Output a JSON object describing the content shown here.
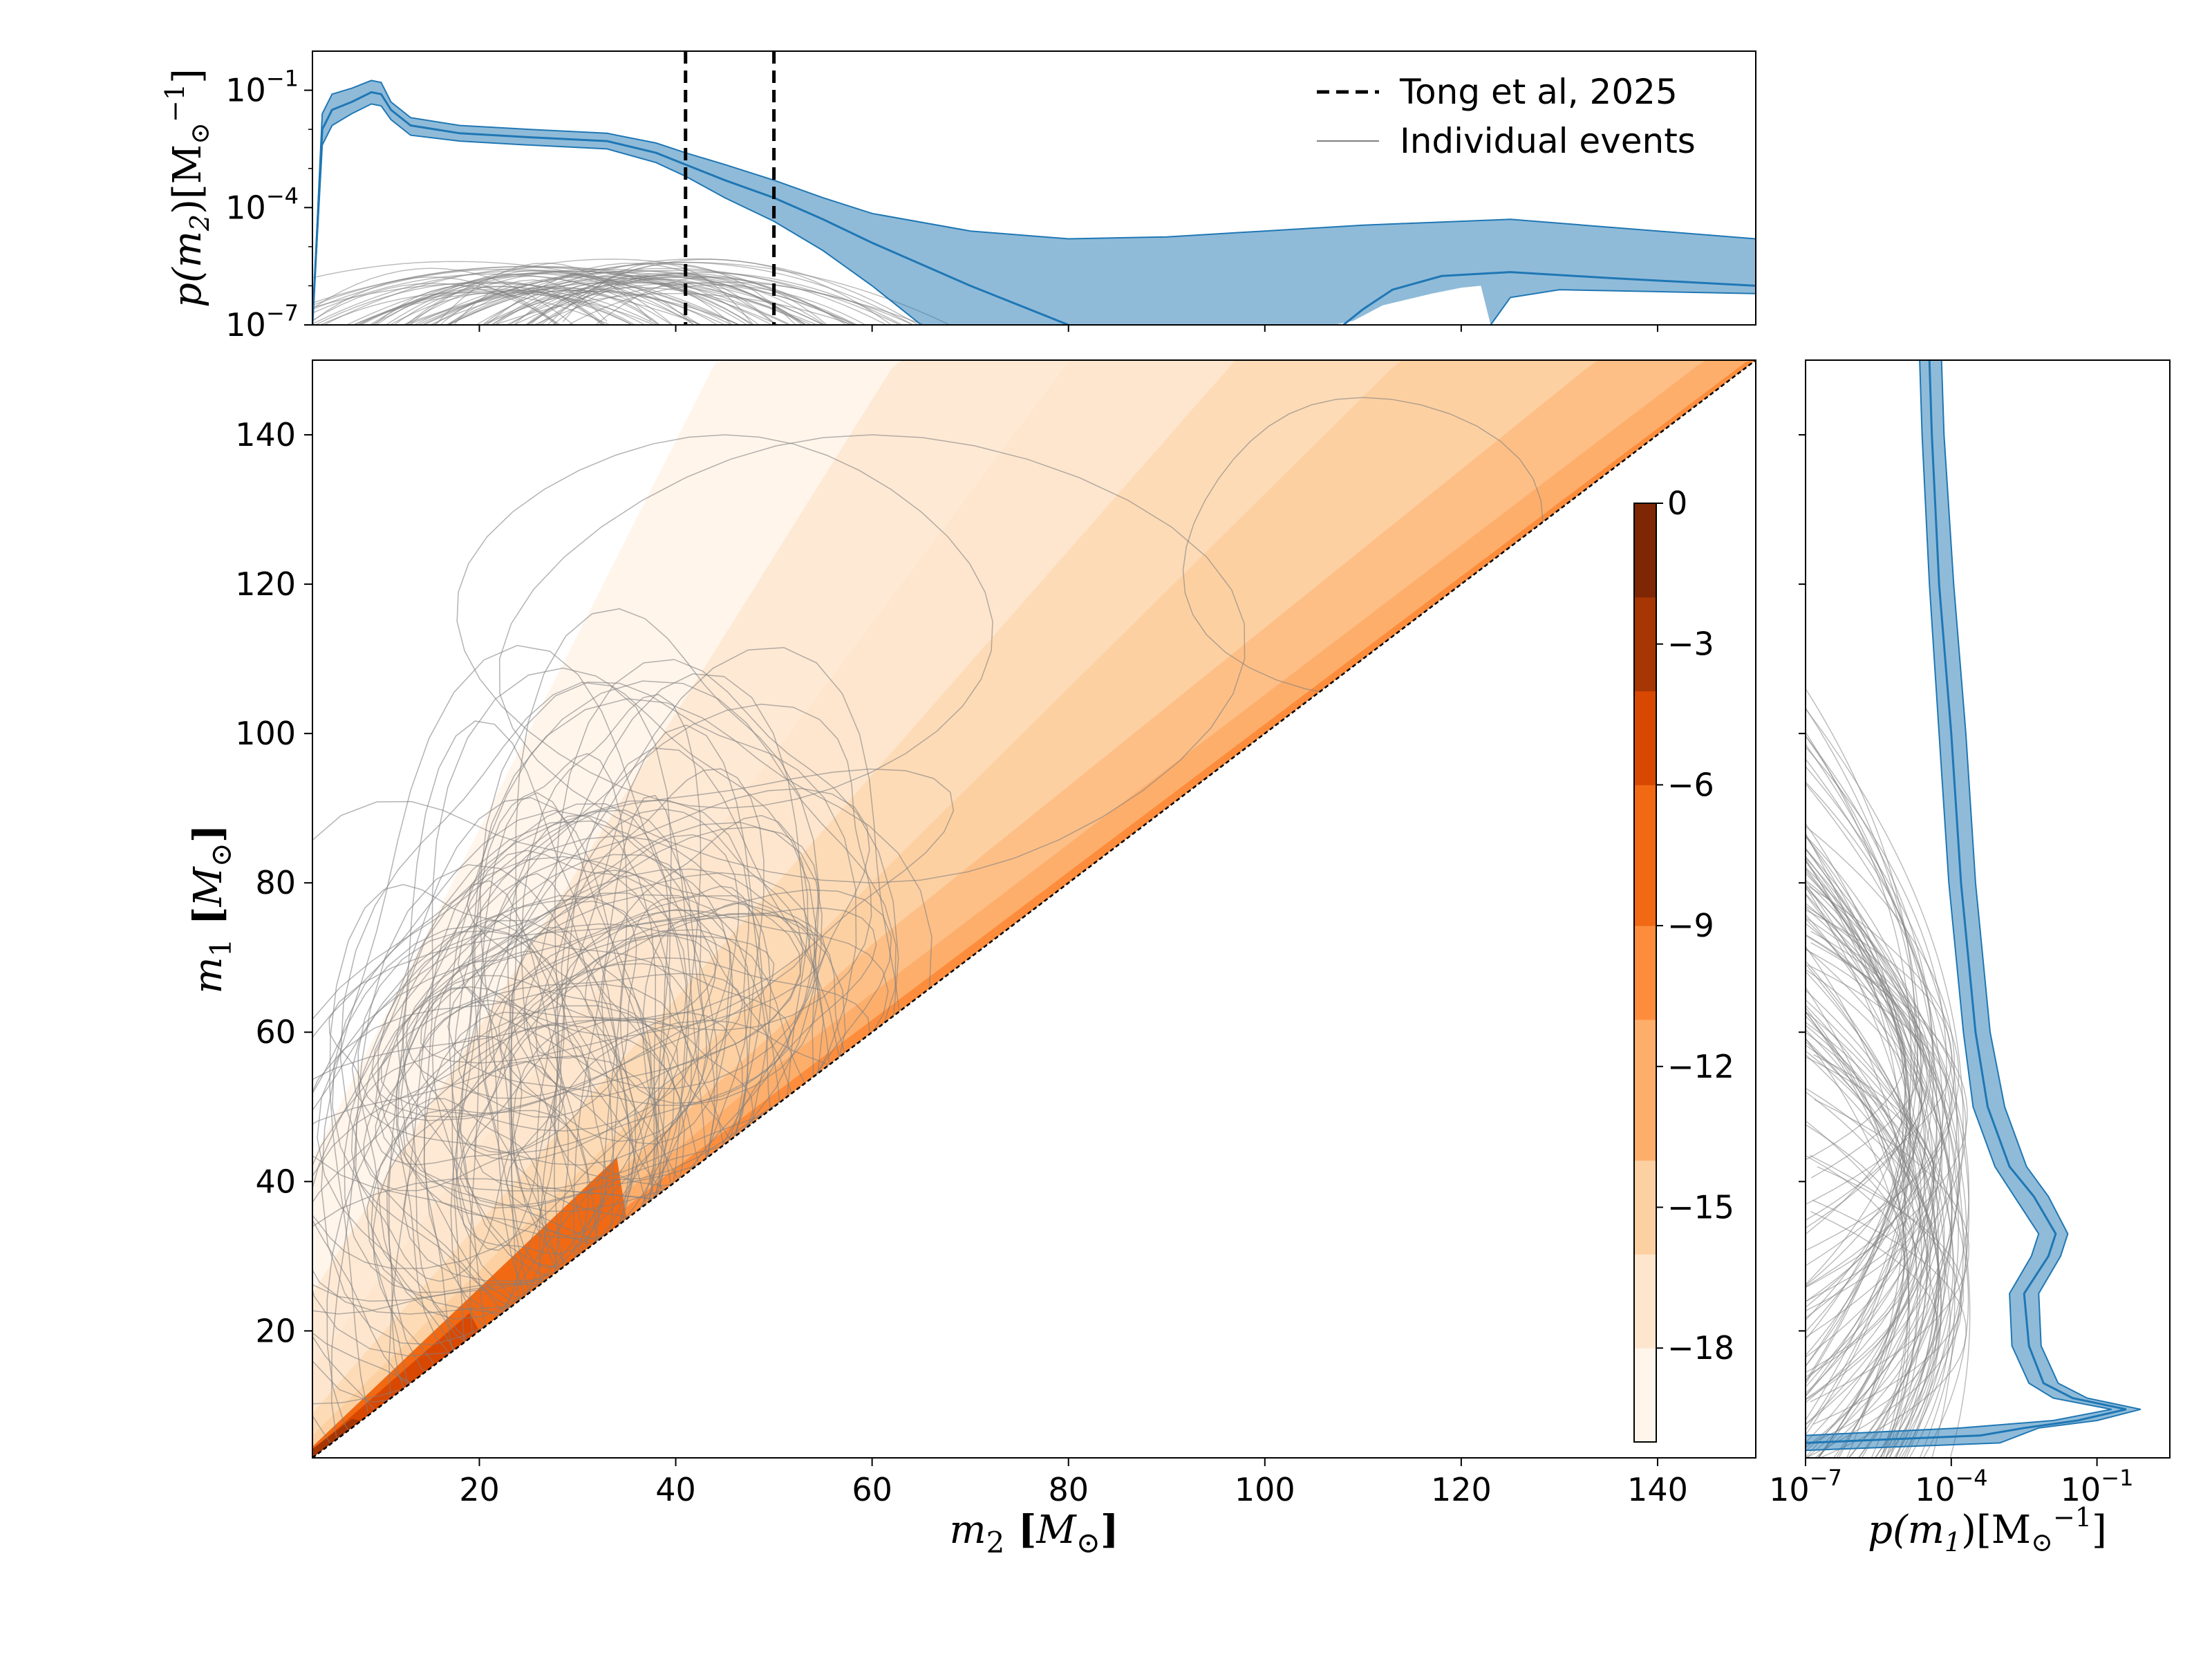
{
  "chart_data": [
    {
      "id": "top_marginal",
      "type": "line",
      "description": "Marginal density of secondary mass",
      "ylabel": "p(m2)[M⊙^-1]",
      "ylabel_parts": {
        "p": "p(m",
        "sub": "2",
        "rest": ")[M",
        "unit_sub": "⊙",
        "sup": "−1",
        "close": "]"
      },
      "yscale": "log",
      "xlim": [
        3,
        150
      ],
      "ylim_log10": [
        -7,
        0
      ],
      "yticks": [
        {
          "value": -1,
          "base": "10",
          "exp": "−1"
        },
        {
          "value": -4,
          "base": "10",
          "exp": "−4"
        },
        {
          "value": -7,
          "base": "10",
          "exp": "−7"
        }
      ],
      "vlines": [
        41,
        50
      ],
      "legend": [
        {
          "label": "Tong et al, 2025",
          "style": "dashed",
          "color": "#000000"
        },
        {
          "label": "Individual events",
          "style": "solid",
          "color": "#808080"
        }
      ],
      "median_log10": [
        [
          3,
          -7
        ],
        [
          4,
          -2
        ],
        [
          5,
          -1.5
        ],
        [
          7,
          -1.3
        ],
        [
          9,
          -1.05
        ],
        [
          10,
          -1.1
        ],
        [
          11,
          -1.5
        ],
        [
          13,
          -1.9
        ],
        [
          18,
          -2.1
        ],
        [
          25,
          -2.2
        ],
        [
          33,
          -2.3
        ],
        [
          38,
          -2.6
        ],
        [
          41,
          -2.9
        ],
        [
          45,
          -3.3
        ],
        [
          50,
          -3.75
        ],
        [
          55,
          -4.3
        ],
        [
          60,
          -4.9
        ],
        [
          70,
          -6.0
        ],
        [
          80,
          -7
        ]
      ],
      "band_upper_log10": [
        [
          3,
          -7
        ],
        [
          4,
          -1.6
        ],
        [
          5,
          -1.1
        ],
        [
          7,
          -0.95
        ],
        [
          9,
          -0.75
        ],
        [
          10,
          -0.8
        ],
        [
          11,
          -1.3
        ],
        [
          13,
          -1.7
        ],
        [
          18,
          -1.9
        ],
        [
          25,
          -2.0
        ],
        [
          33,
          -2.1
        ],
        [
          38,
          -2.35
        ],
        [
          41,
          -2.6
        ],
        [
          45,
          -2.9
        ],
        [
          50,
          -3.3
        ],
        [
          55,
          -3.75
        ],
        [
          60,
          -4.15
        ],
        [
          70,
          -4.6
        ],
        [
          80,
          -4.8
        ],
        [
          90,
          -4.75
        ],
        [
          100,
          -4.6
        ],
        [
          110,
          -4.45
        ],
        [
          120,
          -4.35
        ],
        [
          125,
          -4.3
        ],
        [
          135,
          -4.5
        ],
        [
          150,
          -4.8
        ]
      ],
      "band_lower_log10": [
        [
          3,
          -7
        ],
        [
          4,
          -2.4
        ],
        [
          5,
          -1.9
        ],
        [
          7,
          -1.6
        ],
        [
          9,
          -1.35
        ],
        [
          10,
          -1.4
        ],
        [
          11,
          -1.75
        ],
        [
          13,
          -2.15
        ],
        [
          18,
          -2.3
        ],
        [
          25,
          -2.4
        ],
        [
          33,
          -2.5
        ],
        [
          38,
          -2.85
        ],
        [
          41,
          -3.2
        ],
        [
          45,
          -3.75
        ],
        [
          50,
          -4.35
        ],
        [
          55,
          -5.1
        ],
        [
          60,
          -6.0
        ],
        [
          65,
          -7
        ],
        [
          123,
          -7
        ],
        [
          125,
          -6.3
        ],
        [
          130,
          -6.1
        ],
        [
          140,
          -6.15
        ],
        [
          150,
          -6.2
        ]
      ],
      "upper_branch_median_log10": [
        [
          108,
          -7
        ],
        [
          110,
          -6.6
        ],
        [
          113,
          -6.1
        ],
        [
          118,
          -5.75
        ],
        [
          125,
          -5.65
        ],
        [
          135,
          -5.8
        ],
        [
          150,
          -6.0
        ]
      ],
      "upper_branch_lower_log10": [
        [
          107,
          -7
        ],
        [
          109,
          -6.9
        ],
        [
          112,
          -6.5
        ],
        [
          117,
          -6.2
        ],
        [
          120,
          -6.05
        ],
        [
          122,
          -6.0
        ],
        [
          123,
          -7
        ]
      ]
    },
    {
      "id": "main_joint",
      "type": "heatmap",
      "description": "Joint log-density of primary and secondary mass (filled contours, m1 >= m2)",
      "xlabel": "m2 [M⊙]",
      "ylabel": "m1 [M⊙]",
      "xlabel_parts": {
        "sym": "m",
        "sub": "2",
        "unit": "M",
        "unit_sub": "⊙"
      },
      "ylabel_parts": {
        "sym": "m",
        "sub": "1",
        "unit": "M",
        "unit_sub": "⊙"
      },
      "xlim": [
        3,
        150
      ],
      "ylim": [
        3,
        150
      ],
      "xticks": [
        20,
        40,
        60,
        80,
        100,
        120,
        140
      ],
      "yticks": [
        20,
        40,
        60,
        80,
        100,
        120,
        140
      ],
      "diagonal": "m1 = m2",
      "colorbar": {
        "range": [
          -20,
          0
        ],
        "ticks": [
          {
            "value": 0,
            "label": "0"
          },
          {
            "value": -3,
            "label": "−3"
          },
          {
            "value": -6,
            "label": "−6"
          },
          {
            "value": -9,
            "label": "−9"
          },
          {
            "value": -12,
            "label": "−12"
          },
          {
            "value": -15,
            "label": "−15"
          },
          {
            "value": -18,
            "label": "−18"
          }
        ],
        "colors": [
          "#fff5eb",
          "#fee6ce",
          "#fdd0a2",
          "#fdae6b",
          "#fd8d3c",
          "#f16913",
          "#d94801",
          "#a63603",
          "#7f2704"
        ]
      }
    },
    {
      "id": "right_marginal",
      "type": "line",
      "description": "Marginal density of primary mass",
      "xlabel": "p(m1)[M⊙^-1]",
      "xlabel_parts": {
        "p": "p(m",
        "sub": "1",
        "rest": ")[M",
        "unit_sub": "⊙",
        "sup": "−1",
        "close": "]"
      },
      "xscale": "log",
      "xlim_log10": [
        -7,
        0.5
      ],
      "xticks": [
        {
          "value": -7,
          "base": "10",
          "exp": "−7"
        },
        {
          "value": -4,
          "base": "10",
          "exp": "−4"
        },
        {
          "value": -1,
          "base": "10",
          "exp": "−1"
        }
      ],
      "ylim": [
        3,
        150
      ],
      "median_log10": [
        [
          5,
          -7
        ],
        [
          6,
          -3.4
        ],
        [
          7,
          -2.5
        ],
        [
          8,
          -1.4
        ],
        [
          9.5,
          -0.4
        ],
        [
          11,
          -1.5
        ],
        [
          13,
          -2.1
        ],
        [
          18,
          -2.4
        ],
        [
          25,
          -2.5
        ],
        [
          30,
          -2.0
        ],
        [
          33,
          -1.85
        ],
        [
          38,
          -2.3
        ],
        [
          42,
          -2.8
        ],
        [
          50,
          -3.25
        ],
        [
          60,
          -3.5
        ],
        [
          80,
          -3.8
        ],
        [
          100,
          -4.0
        ],
        [
          120,
          -4.25
        ],
        [
          140,
          -4.4
        ],
        [
          150,
          -4.45
        ]
      ],
      "band_lower_log10": [
        [
          6,
          -7
        ],
        [
          7,
          -3.8
        ],
        [
          8,
          -1.9
        ],
        [
          9.5,
          -0.7
        ],
        [
          11,
          -1.9
        ],
        [
          13,
          -2.4
        ],
        [
          18,
          -2.75
        ],
        [
          25,
          -2.8
        ],
        [
          30,
          -2.35
        ],
        [
          33,
          -2.2
        ],
        [
          38,
          -2.7
        ],
        [
          42,
          -3.1
        ],
        [
          50,
          -3.55
        ],
        [
          60,
          -3.75
        ],
        [
          80,
          -4.05
        ],
        [
          100,
          -4.25
        ],
        [
          120,
          -4.45
        ],
        [
          140,
          -4.6
        ],
        [
          150,
          -4.65
        ]
      ],
      "band_upper_log10": [
        [
          4,
          -7
        ],
        [
          5,
          -3.0
        ],
        [
          7,
          -2.2
        ],
        [
          8,
          -1.0
        ],
        [
          9.5,
          -0.1
        ],
        [
          11,
          -1.2
        ],
        [
          13,
          -1.8
        ],
        [
          18,
          -2.15
        ],
        [
          25,
          -2.2
        ],
        [
          30,
          -1.75
        ],
        [
          33,
          -1.6
        ],
        [
          38,
          -2.0
        ],
        [
          42,
          -2.45
        ],
        [
          50,
          -2.9
        ],
        [
          60,
          -3.2
        ],
        [
          80,
          -3.5
        ],
        [
          100,
          -3.7
        ],
        [
          120,
          -3.95
        ],
        [
          140,
          -4.15
        ],
        [
          150,
          -4.2
        ]
      ]
    }
  ]
}
